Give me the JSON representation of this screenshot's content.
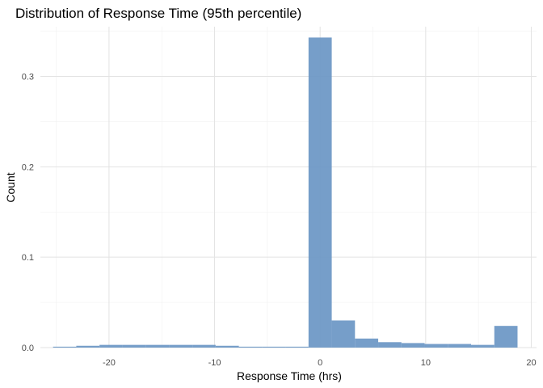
{
  "chart_data": {
    "type": "bar",
    "title": "Distribution of Response Time (95th percentile)",
    "xlabel": "Response Time (hrs)",
    "ylabel": "Count",
    "xlim": [
      -26.5,
      20.5
    ],
    "ylim": [
      0,
      0.355
    ],
    "xticks": [
      -20,
      -10,
      0,
      10,
      20
    ],
    "xtick_labels": [
      "-20",
      "-10",
      "0",
      "10",
      "20"
    ],
    "yticks": [
      0.0,
      0.1,
      0.2,
      0.3
    ],
    "ytick_labels": [
      "0.0",
      "0.1",
      "0.2",
      "0.3"
    ],
    "grid": true,
    "bin_width": 2.2,
    "bins": [
      {
        "x_start": -25.3,
        "x_end": -23.1,
        "value": 0.001
      },
      {
        "x_start": -23.1,
        "x_end": -20.9,
        "value": 0.002
      },
      {
        "x_start": -20.9,
        "x_end": -18.7,
        "value": 0.003
      },
      {
        "x_start": -18.7,
        "x_end": -16.5,
        "value": 0.003
      },
      {
        "x_start": -16.5,
        "x_end": -14.3,
        "value": 0.003
      },
      {
        "x_start": -14.3,
        "x_end": -12.1,
        "value": 0.003
      },
      {
        "x_start": -12.1,
        "x_end": -9.9,
        "value": 0.003
      },
      {
        "x_start": -9.9,
        "x_end": -7.7,
        "value": 0.002
      },
      {
        "x_start": -7.7,
        "x_end": -5.5,
        "value": 0.001
      },
      {
        "x_start": -5.5,
        "x_end": -3.3,
        "value": 0.001
      },
      {
        "x_start": -3.3,
        "x_end": -1.1,
        "value": 0.001
      },
      {
        "x_start": -1.1,
        "x_end": 1.1,
        "value": 0.343
      },
      {
        "x_start": 1.1,
        "x_end": 3.3,
        "value": 0.03
      },
      {
        "x_start": 3.3,
        "x_end": 5.5,
        "value": 0.01
      },
      {
        "x_start": 5.5,
        "x_end": 7.7,
        "value": 0.006
      },
      {
        "x_start": 7.7,
        "x_end": 9.9,
        "value": 0.005
      },
      {
        "x_start": 9.9,
        "x_end": 12.1,
        "value": 0.004
      },
      {
        "x_start": 12.1,
        "x_end": 14.3,
        "value": 0.004
      },
      {
        "x_start": 14.3,
        "x_end": 16.5,
        "value": 0.003
      },
      {
        "x_start": 16.5,
        "x_end": 18.7,
        "value": 0.024
      }
    ],
    "colors": {
      "bar_fill": "#6a96c4",
      "grid_major": "#e3e3e3",
      "grid_minor": "#f1f1f1"
    }
  }
}
